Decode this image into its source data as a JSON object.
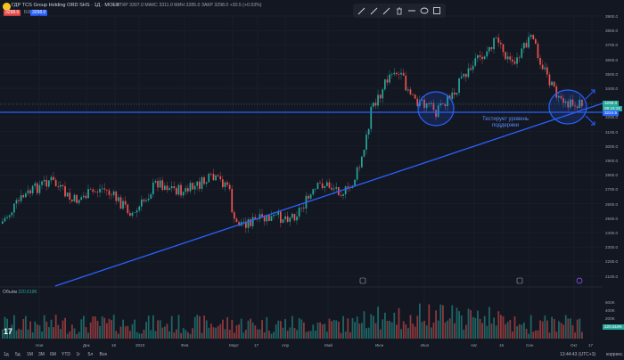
{
  "header": {
    "title": "ГДР TCS Group Holding ORD SHS · 1Д · MOEX",
    "sell_price": "3298.0",
    "spread": "0.0",
    "buy_price": "3298.0",
    "ohlc_text": "ОТКР 3307.0  МАКС 3311.0  МИН 3285.0  ЗАКР 3298.0 +30.5 (+0.93%)"
  },
  "toolbar": {
    "tools": [
      "pencil-icon",
      "pencil-icon",
      "pencil-icon",
      "trash-icon",
      "minus-icon",
      "circle-icon",
      "square-icon"
    ]
  },
  "price_axis": {
    "labels": [
      "3900.0",
      "3800.0",
      "3700.0",
      "3600.0",
      "3500.0",
      "3400.0",
      "3300.0",
      "3200.0",
      "3100.0",
      "3000.0",
      "2900.0",
      "2800.0",
      "2700.0",
      "2600.0",
      "2500.0",
      "2400.0",
      "2300.0",
      "2200.0",
      "2100.0"
    ],
    "volume_labels": [
      "600K",
      "400K",
      "200K"
    ],
    "current_price_tag": "3298.0",
    "countdown_tag": "09:15:16",
    "level_tag": "3224.5",
    "volume_tag": "220.619K"
  },
  "time_axis": {
    "labels": [
      "Ноя",
      "Дек",
      "16",
      "2023",
      "Фев",
      "Март",
      "17",
      "Апр",
      "Май",
      "Июн",
      "Июл",
      "Авг",
      "16",
      "Сен",
      "Окт",
      "17"
    ]
  },
  "volume": {
    "label": "Объём",
    "value": "220.619K"
  },
  "annotation": {
    "line1": "Тестирует уровень",
    "line2": "поддержки"
  },
  "footer": {
    "ranges": [
      "1д",
      "5д",
      "1М",
      "3М",
      "6М",
      "YTD",
      "1г",
      "5л",
      "Все"
    ],
    "clock": "13:44:43 (UTC+3)",
    "correction": "коррекс."
  },
  "colors": {
    "background": "#131722",
    "up": "#26a69a",
    "down": "#ef5350",
    "drawing": "#2962ff"
  }
}
